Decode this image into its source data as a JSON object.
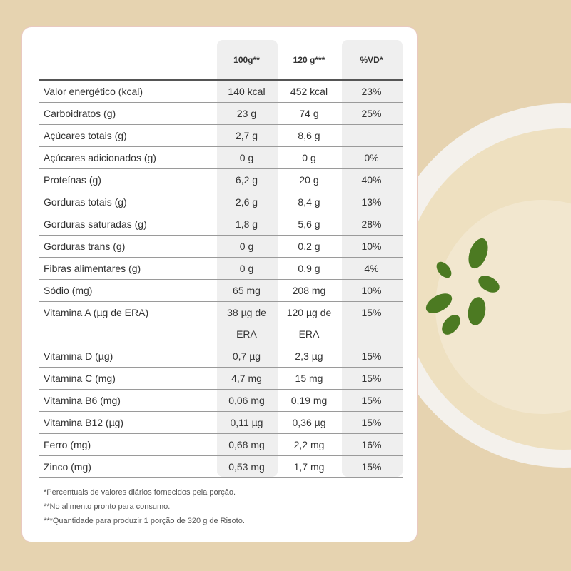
{
  "table": {
    "header": [
      "100g**",
      "120 g***",
      "%VD*"
    ],
    "rows": [
      [
        "Valor energético (kcal)",
        "140 kcal",
        "452 kcal",
        "23%"
      ],
      [
        "Carboidratos (g)",
        "23 g",
        "74 g",
        "25%"
      ],
      [
        "Açúcares totais (g)",
        "2,7 g",
        "8,6 g",
        null
      ],
      [
        "Açúcares adicionados (g)",
        "0 g",
        "0 g",
        "0%"
      ],
      [
        "Proteínas (g)",
        "6,2 g",
        "20 g",
        "40%"
      ],
      [
        "Gorduras totais (g)",
        "2,6 g",
        "8,4 g",
        "13%"
      ],
      [
        "Gorduras saturadas (g)",
        "1,8 g",
        "5,6 g",
        "28%"
      ],
      [
        "Gorduras trans (g)",
        "0 g",
        "0,2 g",
        "10%"
      ],
      [
        "Fibras alimentares (g)",
        "0 g",
        "0,9 g",
        "4%"
      ],
      [
        "Sódio (mg)",
        "65 mg",
        "208 mg",
        "10%"
      ],
      [
        "Vitamina A (µg de ERA)",
        "38 µg de ERA",
        "120 µg de ERA",
        "15%"
      ],
      [
        "Vitamina D (µg)",
        "0,7 µg",
        "2,3 µg",
        "15%"
      ],
      [
        "Vitamina C (mg)",
        "4,7 mg",
        "15 mg",
        "15%"
      ],
      [
        "Vitamina B6 (mg)",
        "0,06 mg",
        "0,19 mg",
        "15%"
      ],
      [
        "Vitamina B12 (µg)",
        "0,11 µg",
        "0,36 µg",
        "15%"
      ],
      [
        "Ferro (mg)",
        "0,68 mg",
        "2,2 mg",
        "16%"
      ],
      [
        "Zinco (mg)",
        "0,53 mg",
        "1,7 mg",
        "15%"
      ]
    ]
  },
  "footnotes": [
    "*Percentuais de valores diários fornecidos pela porção.",
    "**No alimento pronto para consumo.",
    "***Quantidade para produzir 1 porção de 320 g de Risoto."
  ]
}
